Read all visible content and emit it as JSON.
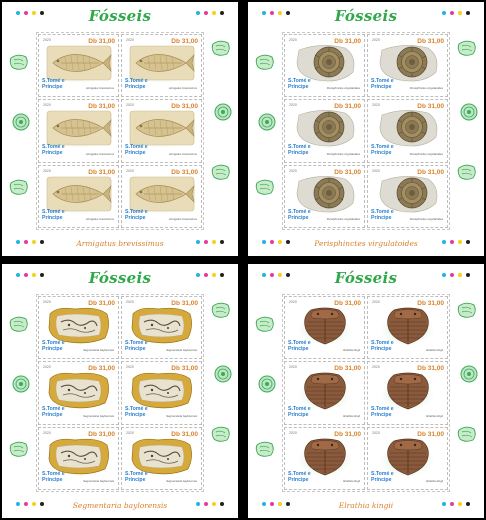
{
  "colors": {
    "title_green": "#2fa84a",
    "caption_orange": "#d9822b",
    "country_blue": "#2a7fd0",
    "registration_dots": [
      "#1fb5e6",
      "#e83a9a",
      "#f2d21c",
      "#222222"
    ]
  },
  "sheets": [
    {
      "title": "Fósseis",
      "caption": "Armigatus brevissimus",
      "subject": "fish-fossil",
      "stamps": [
        {
          "year": "2020",
          "value": "Db 31,00",
          "country": "S.Tomé e Príncipe",
          "species": "Armigatus brevissimus"
        },
        {
          "year": "2020",
          "value": "Db 31,00",
          "country": "S.Tomé e Príncipe",
          "species": "Armigatus brevissimus"
        },
        {
          "year": "2020",
          "value": "Db 31,00",
          "country": "S.Tomé e Príncipe",
          "species": "Armigatus brevissimus"
        },
        {
          "year": "2020",
          "value": "Db 31,00",
          "country": "S.Tomé e Príncipe",
          "species": "Armigatus brevissimus"
        },
        {
          "year": "2020",
          "value": "Db 31,00",
          "country": "S.Tomé e Príncipe",
          "species": "Armigatus brevissimus"
        },
        {
          "year": "2020",
          "value": "Db 31,00",
          "country": "S.Tomé e Príncipe",
          "species": "Armigatus brevissimus"
        }
      ]
    },
    {
      "title": "Fósseis",
      "caption": "Perisphinctes virgulatoides",
      "subject": "ammonite-fossil",
      "stamps": [
        {
          "year": "2020",
          "value": "Db 31,00",
          "country": "S.Tomé e Príncipe",
          "species": "Perisphinctes virgulatoides"
        },
        {
          "year": "2020",
          "value": "Db 31,00",
          "country": "S.Tomé e Príncipe",
          "species": "Perisphinctes virgulatoides"
        },
        {
          "year": "2020",
          "value": "Db 31,00",
          "country": "S.Tomé e Príncipe",
          "species": "Perisphinctes virgulatoides"
        },
        {
          "year": "2020",
          "value": "Db 31,00",
          "country": "S.Tomé e Príncipe",
          "species": "Perisphinctes virgulatoides"
        },
        {
          "year": "2020",
          "value": "Db 31,00",
          "country": "S.Tomé e Príncipe",
          "species": "Perisphinctes virgulatoides"
        },
        {
          "year": "2020",
          "value": "Db 31,00",
          "country": "S.Tomé e Príncipe",
          "species": "Perisphinctes virgulatoides"
        }
      ]
    },
    {
      "title": "Fósseis",
      "caption": "Segmentaria baylorensis",
      "subject": "slab-fossil",
      "stamps": [
        {
          "year": "2020",
          "value": "Db 31,00",
          "country": "S.Tomé e Príncipe",
          "species": "Segmentaria baylorensis"
        },
        {
          "year": "2020",
          "value": "Db 31,00",
          "country": "S.Tomé e Príncipe",
          "species": "Segmentaria baylorensis"
        },
        {
          "year": "2020",
          "value": "Db 31,00",
          "country": "S.Tomé e Príncipe",
          "species": "Segmentaria baylorensis"
        },
        {
          "year": "2020",
          "value": "Db 31,00",
          "country": "S.Tomé e Príncipe",
          "species": "Segmentaria baylorensis"
        },
        {
          "year": "2020",
          "value": "Db 31,00",
          "country": "S.Tomé e Príncipe",
          "species": "Segmentaria baylorensis"
        },
        {
          "year": "2020",
          "value": "Db 31,00",
          "country": "S.Tomé e Príncipe",
          "species": "Segmentaria baylorensis"
        }
      ]
    },
    {
      "title": "Fósseis",
      "caption": "Elrathia kingii",
      "subject": "trilobite-fossil",
      "stamps": [
        {
          "year": "2020",
          "value": "Db 31,00",
          "country": "S.Tomé e Príncipe",
          "species": "Elrathia kingii"
        },
        {
          "year": "2020",
          "value": "Db 31,00",
          "country": "S.Tomé e Príncipe",
          "species": "Elrathia kingii"
        },
        {
          "year": "2020",
          "value": "Db 31,00",
          "country": "S.Tomé e Príncipe",
          "species": "Elrathia kingii"
        },
        {
          "year": "2020",
          "value": "Db 31,00",
          "country": "S.Tomé e Príncipe",
          "species": "Elrathia kingii"
        },
        {
          "year": "2020",
          "value": "Db 31,00",
          "country": "S.Tomé e Príncipe",
          "species": "Elrathia kingii"
        },
        {
          "year": "2020",
          "value": "Db 31,00",
          "country": "S.Tomé e Príncipe",
          "species": "Elrathia kingii"
        }
      ]
    }
  ]
}
